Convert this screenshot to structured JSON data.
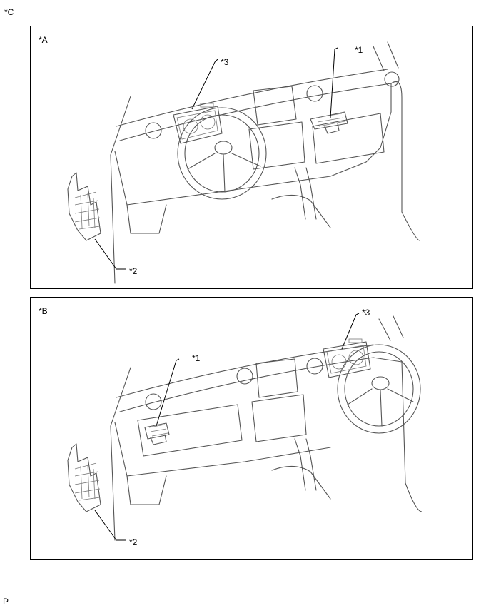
{
  "corner_label": "*C",
  "footer_label": "P",
  "panel_a": {
    "label": "*A",
    "callouts": {
      "one": "*1",
      "two": "*2",
      "three": "*3"
    }
  },
  "panel_b": {
    "label": "*B",
    "callouts": {
      "one": "*1",
      "two": "*2",
      "three": "*3"
    }
  }
}
